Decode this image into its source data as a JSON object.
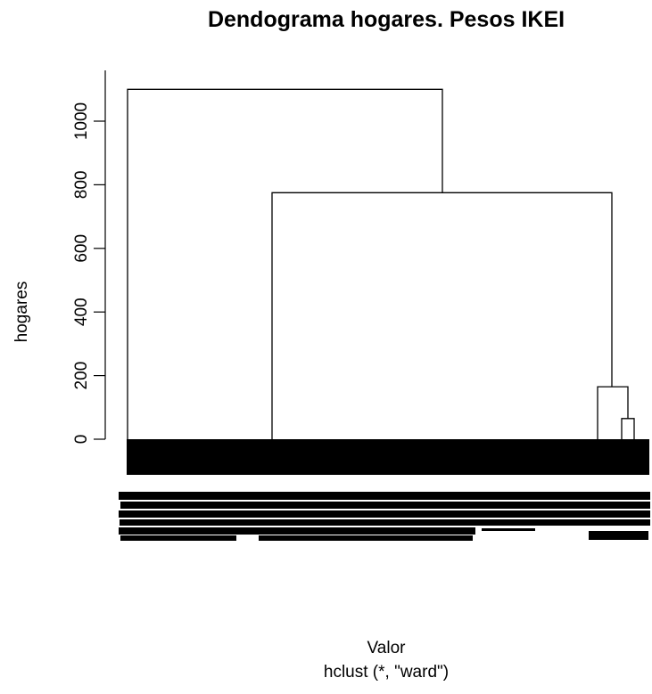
{
  "chart_data": {
    "type": "dendrogram",
    "title": "Dendograma hogares. Pesos IKEI",
    "ylabel": "hogares",
    "xlabel": "Valor",
    "sub": "hclust (*, \"ward\")",
    "ylim": [
      0,
      1100
    ],
    "yticks": [
      0,
      200,
      400,
      600,
      800,
      1000
    ],
    "merges": [
      {
        "name": "root",
        "height": 1100
      },
      {
        "name": "right-main",
        "height": 775
      },
      {
        "name": "right-small",
        "height": 165
      },
      {
        "name": "right-tiny",
        "height": 65
      }
    ]
  }
}
